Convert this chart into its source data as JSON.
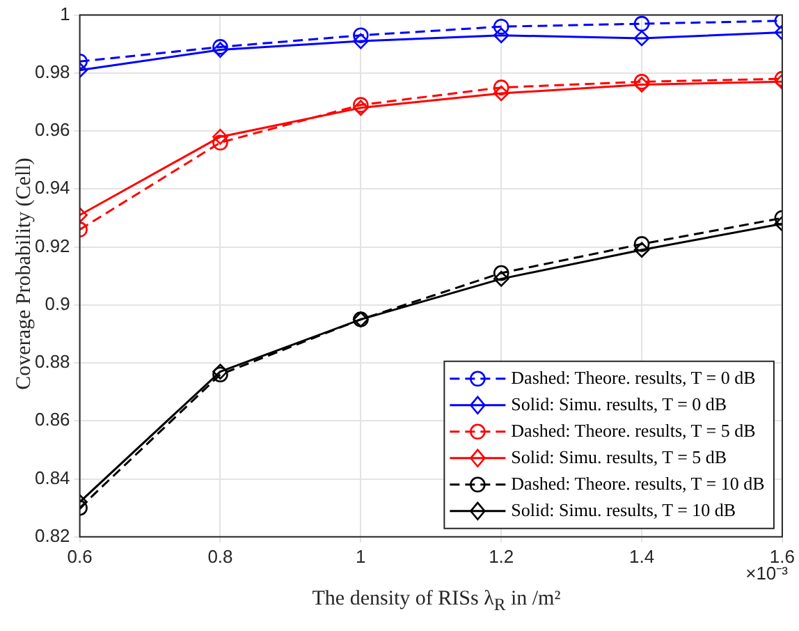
{
  "chart_data": {
    "type": "line",
    "xlabel": "The density of RISs λ$_{R}$ in /m²",
    "ylabel": "Coverage Probability (Cell)",
    "annotations": [
      "×10⁻³"
    ],
    "x": [
      0.6,
      0.8,
      1,
      1.2,
      1.4,
      1.6
    ],
    "xlim": [
      0.6,
      1.6
    ],
    "xticks": [
      0.6,
      0.8,
      1,
      1.2,
      1.4,
      1.6
    ],
    "ylim": [
      0.82,
      1
    ],
    "yticks": [
      0.82,
      0.84,
      0.86,
      0.88,
      0.9,
      0.92,
      0.94,
      0.96,
      0.98,
      1
    ],
    "grid": true,
    "legend": "bottom right",
    "series": [
      {
        "name": "Dashed: Theore. results, T = 0 dB",
        "color": "#0000ff",
        "line_style": "dashed",
        "marker": "circle",
        "values": [
          0.984,
          0.989,
          0.993,
          0.996,
          0.997,
          0.998
        ]
      },
      {
        "name": "Solid: Simu. results, T = 0 dB",
        "color": "#0000ff",
        "line_style": "solid",
        "marker": "diamond",
        "values": [
          0.981,
          0.988,
          0.991,
          0.993,
          0.992,
          0.994
        ]
      },
      {
        "name": "Dashed: Theore. results, T = 5 dB",
        "color": "#ff0000",
        "line_style": "dashed",
        "marker": "circle",
        "values": [
          0.926,
          0.956,
          0.969,
          0.975,
          0.977,
          0.978
        ]
      },
      {
        "name": "Solid: Simu. results, T = 5 dB",
        "color": "#ff0000",
        "line_style": "solid",
        "marker": "diamond",
        "values": [
          0.931,
          0.958,
          0.968,
          0.973,
          0.976,
          0.977
        ]
      },
      {
        "name": "Dashed: Theore. results, T = 10 dB",
        "color": "#000000",
        "line_style": "dashed",
        "marker": "circle",
        "values": [
          0.83,
          0.876,
          0.895,
          0.911,
          0.921,
          0.93
        ]
      },
      {
        "name": "Solid: Simu. results, T = 10 dB",
        "color": "#000000",
        "line_style": "solid",
        "marker": "diamond",
        "values": [
          0.832,
          0.877,
          0.895,
          0.909,
          0.919,
          0.928
        ]
      }
    ]
  }
}
